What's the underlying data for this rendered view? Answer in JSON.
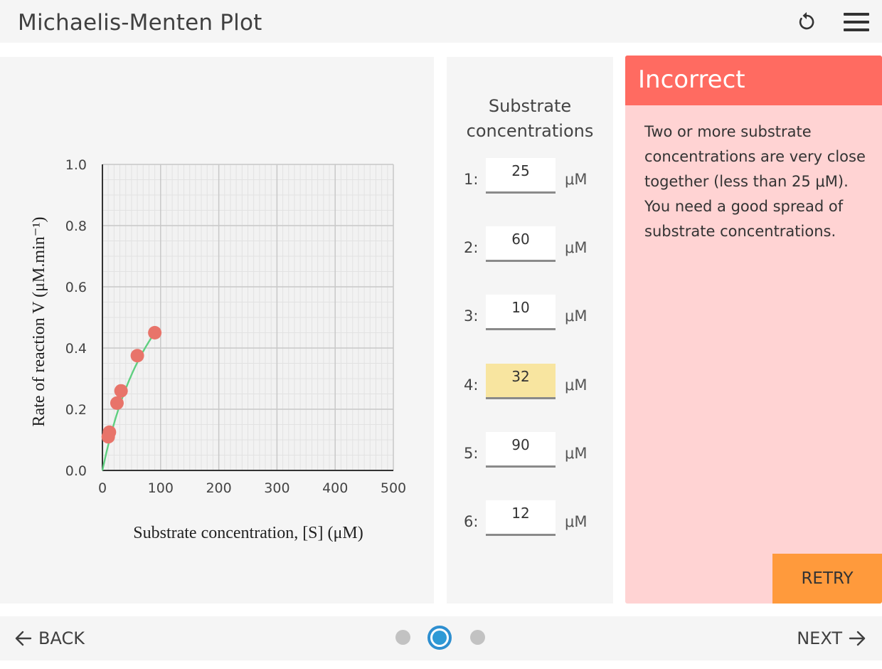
{
  "header": {
    "title": "Michaelis-Menten Plot",
    "reset_icon": "reset-icon",
    "menu_icon": "hamburger-menu-icon"
  },
  "chart_data": {
    "type": "scatter",
    "xlabel": "Substrate concentration, [S] (μM)",
    "ylabel": "Rate of reaction V (μM.min⁻¹)",
    "xlim": [
      0,
      500
    ],
    "ylim": [
      0,
      1.0
    ],
    "x_ticks": [
      "0",
      "100",
      "200",
      "300",
      "400",
      "500"
    ],
    "y_ticks": [
      "0.0",
      "0.2",
      "0.4",
      "0.6",
      "0.8",
      "1.0"
    ],
    "grid": true,
    "points": [
      {
        "x": 10,
        "y": 0.11
      },
      {
        "x": 12,
        "y": 0.125
      },
      {
        "x": 25,
        "y": 0.22
      },
      {
        "x": 32,
        "y": 0.26
      },
      {
        "x": 60,
        "y": 0.375
      },
      {
        "x": 90,
        "y": 0.45
      }
    ],
    "curve": {
      "vmax": 1.0,
      "km": 110,
      "x_end": 90
    },
    "point_color": "#e8746a",
    "curve_color": "#5fcf80"
  },
  "concentrations": {
    "title_line1": "Substrate",
    "title_line2": "concentrations",
    "unit": "μM",
    "rows": [
      {
        "label": "1:",
        "value": "25"
      },
      {
        "label": "2:",
        "value": "60"
      },
      {
        "label": "3:",
        "value": "10"
      },
      {
        "label": "4:",
        "value": "32"
      },
      {
        "label": "5:",
        "value": "90"
      },
      {
        "label": "6:",
        "value": "12"
      }
    ]
  },
  "feedback": {
    "title": "Incorrect",
    "message": "Two or more substrate concentrations are very close together (less than 25 μM). You need a good spread of substrate concentrations.",
    "retry_label": "RETRY",
    "colors": {
      "header": "#ff6b61",
      "body": "#ffd3d3",
      "retry": "#ff9a3c"
    }
  },
  "footer": {
    "back_label": "BACK",
    "next_label": "NEXT",
    "pages": 3,
    "current_page": 2
  }
}
